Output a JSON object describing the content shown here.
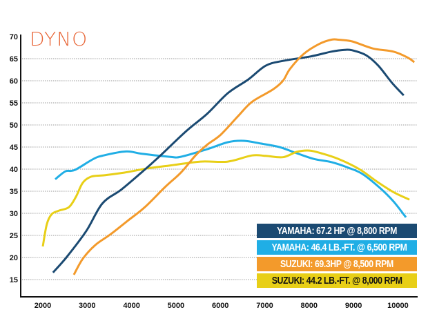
{
  "chart_data": {
    "type": "line",
    "title": "DYNO",
    "xlabel": "",
    "ylabel": "",
    "xlim": [
      1500,
      10450
    ],
    "ylim": [
      10,
      70
    ],
    "grid": true,
    "xticks": [
      2000,
      3000,
      4000,
      5000,
      6000,
      7000,
      8000,
      9000,
      10000
    ],
    "yticks": [
      15,
      20,
      25,
      30,
      35,
      40,
      45,
      50,
      55,
      60,
      65,
      70
    ],
    "legend_position": "bottom-right",
    "series": [
      {
        "name": "YAMAHA: 67.2 HP @ 8,800 RPM",
        "color": "#1b4a72",
        "text_color": "#ffffff",
        "x": [
          2230,
          2530,
          2980,
          3340,
          3760,
          4220,
          4610,
          5230,
          5700,
          6170,
          6630,
          7020,
          7410,
          8030,
          8500,
          8800,
          8970,
          9280,
          9560,
          9870,
          10130
        ],
        "y": [
          16.6,
          20.0,
          26.0,
          32.2,
          35.3,
          39.2,
          42.7,
          48.6,
          52.5,
          57.2,
          60.3,
          63.4,
          64.5,
          65.5,
          66.6,
          67.0,
          66.9,
          65.8,
          63.4,
          59.5,
          56.7
        ]
      },
      {
        "name": "YAMAHA: 46.4 LB.-FT. @ 6,500 RPM",
        "color": "#20aee5",
        "text_color": "#ffffff",
        "x": [
          2280,
          2510,
          2720,
          3140,
          3370,
          3880,
          4220,
          4850,
          5110,
          5700,
          6170,
          6530,
          6910,
          7330,
          7720,
          8110,
          8500,
          8890,
          9200,
          9590,
          9900,
          10180
        ],
        "y": [
          37.7,
          39.5,
          39.8,
          42.3,
          43.1,
          44.0,
          43.5,
          42.8,
          42.8,
          44.5,
          46.1,
          46.4,
          45.8,
          45.0,
          43.6,
          42.3,
          41.6,
          40.3,
          38.9,
          35.8,
          32.7,
          29.1
        ]
      },
      {
        "name": "SUZUKI: 69.3HP @ 8,500 RPM",
        "color": "#f39a2b",
        "text_color": "#ffffff",
        "x": [
          2700,
          2900,
          3180,
          3520,
          3910,
          4300,
          4770,
          5110,
          5440,
          5700,
          6010,
          6400,
          6710,
          7180,
          7410,
          7570,
          7880,
          8220,
          8500,
          8660,
          8970,
          9440,
          9900,
          10210,
          10370
        ],
        "y": [
          16.1,
          19.7,
          22.8,
          25.2,
          28.3,
          31.4,
          36.1,
          39.2,
          43.1,
          45.5,
          47.8,
          52.0,
          55.2,
          58.0,
          60.0,
          62.7,
          66.1,
          68.3,
          69.3,
          69.3,
          68.9,
          67.3,
          66.6,
          65.3,
          64.2
        ]
      },
      {
        "name": "SUZUKI: 44.2 LB.-FT. @ 8,000 RPM",
        "color": "#e8cf17",
        "text_color": "#111111",
        "x": [
          2000,
          2090,
          2200,
          2360,
          2590,
          2750,
          2900,
          3090,
          3370,
          3830,
          4380,
          4850,
          5550,
          6170,
          6710,
          7020,
          7410,
          7720,
          8000,
          8270,
          8660,
          9130,
          9510,
          9900,
          10260
        ],
        "y": [
          22.5,
          27.5,
          29.8,
          30.6,
          31.4,
          33.8,
          36.9,
          38.3,
          38.6,
          39.2,
          40.2,
          40.8,
          41.7,
          41.7,
          43.1,
          43.0,
          42.7,
          43.9,
          44.2,
          43.6,
          42.3,
          40.0,
          37.3,
          34.8,
          33.1
        ]
      }
    ]
  }
}
